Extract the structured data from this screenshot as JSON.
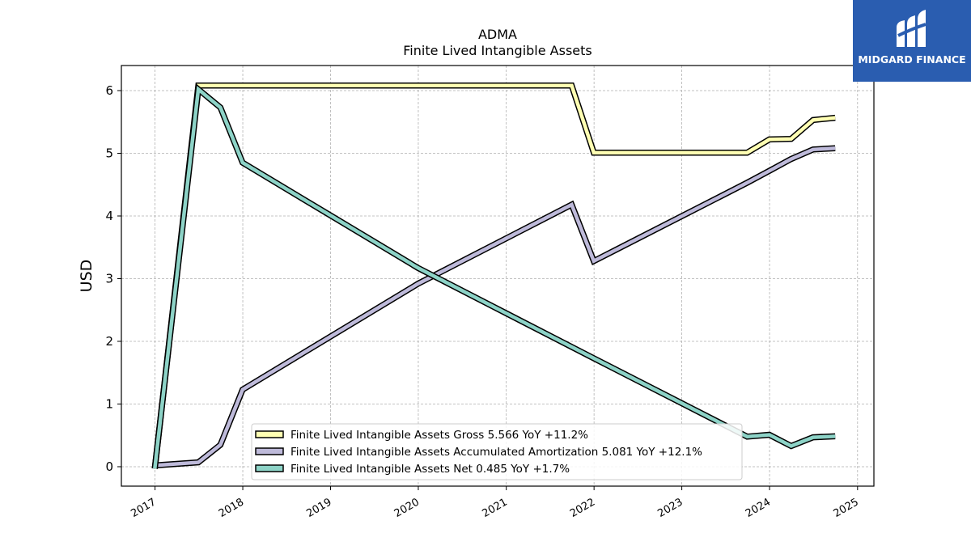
{
  "brand": {
    "name": "MIDGARD FINANCE",
    "bg_color": "#2a5db0"
  },
  "chart_data": {
    "type": "line",
    "title": "ADMA",
    "subtitle": "Finite Lived Intangible Assets",
    "ylabel": "USD",
    "xlabel": "",
    "xlim": [
      "2016-08-14",
      "2025-03-10"
    ],
    "ylim": [
      -0.31,
      6.4
    ],
    "x_ticks": [
      "2017",
      "2018",
      "2019",
      "2020",
      "2021",
      "2022",
      "2023",
      "2024",
      "2025"
    ],
    "y_ticks": [
      0,
      1,
      2,
      3,
      4,
      5,
      6
    ],
    "grid": true,
    "legend_position": "lower-center",
    "series": [
      {
        "name": "Finite Lived Intangible Assets Gross  5.566 YoY +11.2%",
        "color": "#ffffb3",
        "x": [
          "2016-12-31",
          "2017-06-30",
          "2017-09-30",
          "2017-12-31",
          "2021-09-30",
          "2021-12-31",
          "2023-09-30",
          "2023-12-31",
          "2024-03-31",
          "2024-06-30",
          "2024-09-30"
        ],
        "y": [
          -0.03,
          6.08,
          6.08,
          6.08,
          6.08,
          5.01,
          5.01,
          5.22,
          5.23,
          5.53,
          5.566
        ]
      },
      {
        "name": "Finite Lived Intangible Assets Accumulated Amortization  5.081 YoY +12.1%",
        "color": "#bebada",
        "x": [
          "2016-12-31",
          "2017-06-30",
          "2017-09-30",
          "2017-12-31",
          "2019-12-31",
          "2021-09-30",
          "2021-12-31",
          "2023-09-30",
          "2023-12-31",
          "2024-03-31",
          "2024-06-30",
          "2024-09-30"
        ],
        "y": [
          0.02,
          0.07,
          0.35,
          1.23,
          2.92,
          4.18,
          3.28,
          4.53,
          4.72,
          4.91,
          5.06,
          5.081
        ]
      },
      {
        "name": "Finite Lived Intangible Assets Net  0.485 YoY +1.7%",
        "color": "#8dd3c7",
        "x": [
          "2016-12-31",
          "2017-06-30",
          "2017-09-30",
          "2017-12-31",
          "2019-12-31",
          "2021-12-31",
          "2023-09-30",
          "2023-12-31",
          "2024-03-31",
          "2024-06-30",
          "2024-09-30"
        ],
        "y": [
          -0.03,
          6.02,
          5.73,
          4.85,
          3.17,
          1.73,
          0.48,
          0.51,
          0.33,
          0.47,
          0.485
        ]
      }
    ]
  }
}
